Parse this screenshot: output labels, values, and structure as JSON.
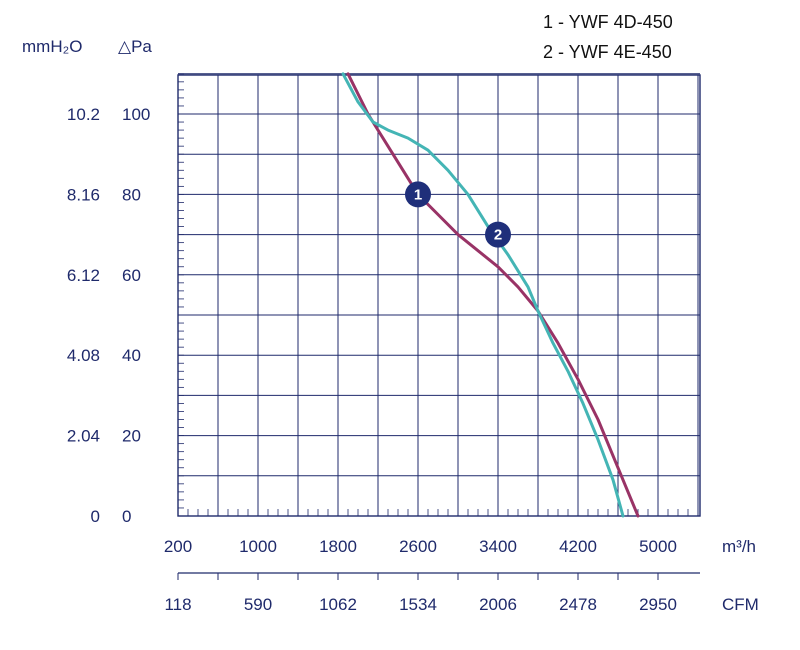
{
  "chart_data": {
    "type": "line",
    "legend": [
      "1 - YWF 4D-450",
      "2 - YWF 4E-450"
    ],
    "y_axis_left_label": "mmH₂O",
    "y_axis_right_label": "△Pa",
    "y_mm_ticks": [
      "10.2",
      "8.16",
      "6.12",
      "4.08",
      "2.04",
      "0"
    ],
    "y_pa_ticks": [
      "100",
      "80",
      "60",
      "40",
      "20",
      "0"
    ],
    "x_m3h_ticks": [
      "200",
      "1000",
      "1800",
      "2600",
      "3400",
      "4200",
      "5000"
    ],
    "x_m3h_unit": "m³/h",
    "x_cfm_ticks": [
      "118",
      "590",
      "1062",
      "1534",
      "2006",
      "2478",
      "2950"
    ],
    "x_cfm_unit": "CFM",
    "xlim": [
      200,
      5500
    ],
    "ylim": [
      0,
      110
    ],
    "grid": true,
    "series": [
      {
        "name": "1",
        "color": "#993366",
        "marker_at": [
          2600,
          80
        ],
        "points": [
          [
            1900,
            110
          ],
          [
            2100,
            100
          ],
          [
            2300,
            92
          ],
          [
            2500,
            84
          ],
          [
            2600,
            80
          ],
          [
            2800,
            75
          ],
          [
            3000,
            70
          ],
          [
            3200,
            66
          ],
          [
            3400,
            62
          ],
          [
            3600,
            57
          ],
          [
            3800,
            51
          ],
          [
            4000,
            43
          ],
          [
            4200,
            34
          ],
          [
            4400,
            24
          ],
          [
            4600,
            12
          ],
          [
            4800,
            0
          ]
        ]
      },
      {
        "name": "2",
        "color": "#44b5b5",
        "marker_at": [
          3400,
          70
        ],
        "points": [
          [
            1850,
            110
          ],
          [
            2000,
            103
          ],
          [
            2150,
            98
          ],
          [
            2300,
            96
          ],
          [
            2500,
            94
          ],
          [
            2700,
            91
          ],
          [
            2900,
            86
          ],
          [
            3100,
            80
          ],
          [
            3300,
            72
          ],
          [
            3500,
            65
          ],
          [
            3700,
            57
          ],
          [
            3800,
            51
          ],
          [
            3950,
            43
          ],
          [
            4100,
            36
          ],
          [
            4250,
            28
          ],
          [
            4400,
            19
          ],
          [
            4550,
            9
          ],
          [
            4650,
            0
          ]
        ]
      }
    ]
  }
}
